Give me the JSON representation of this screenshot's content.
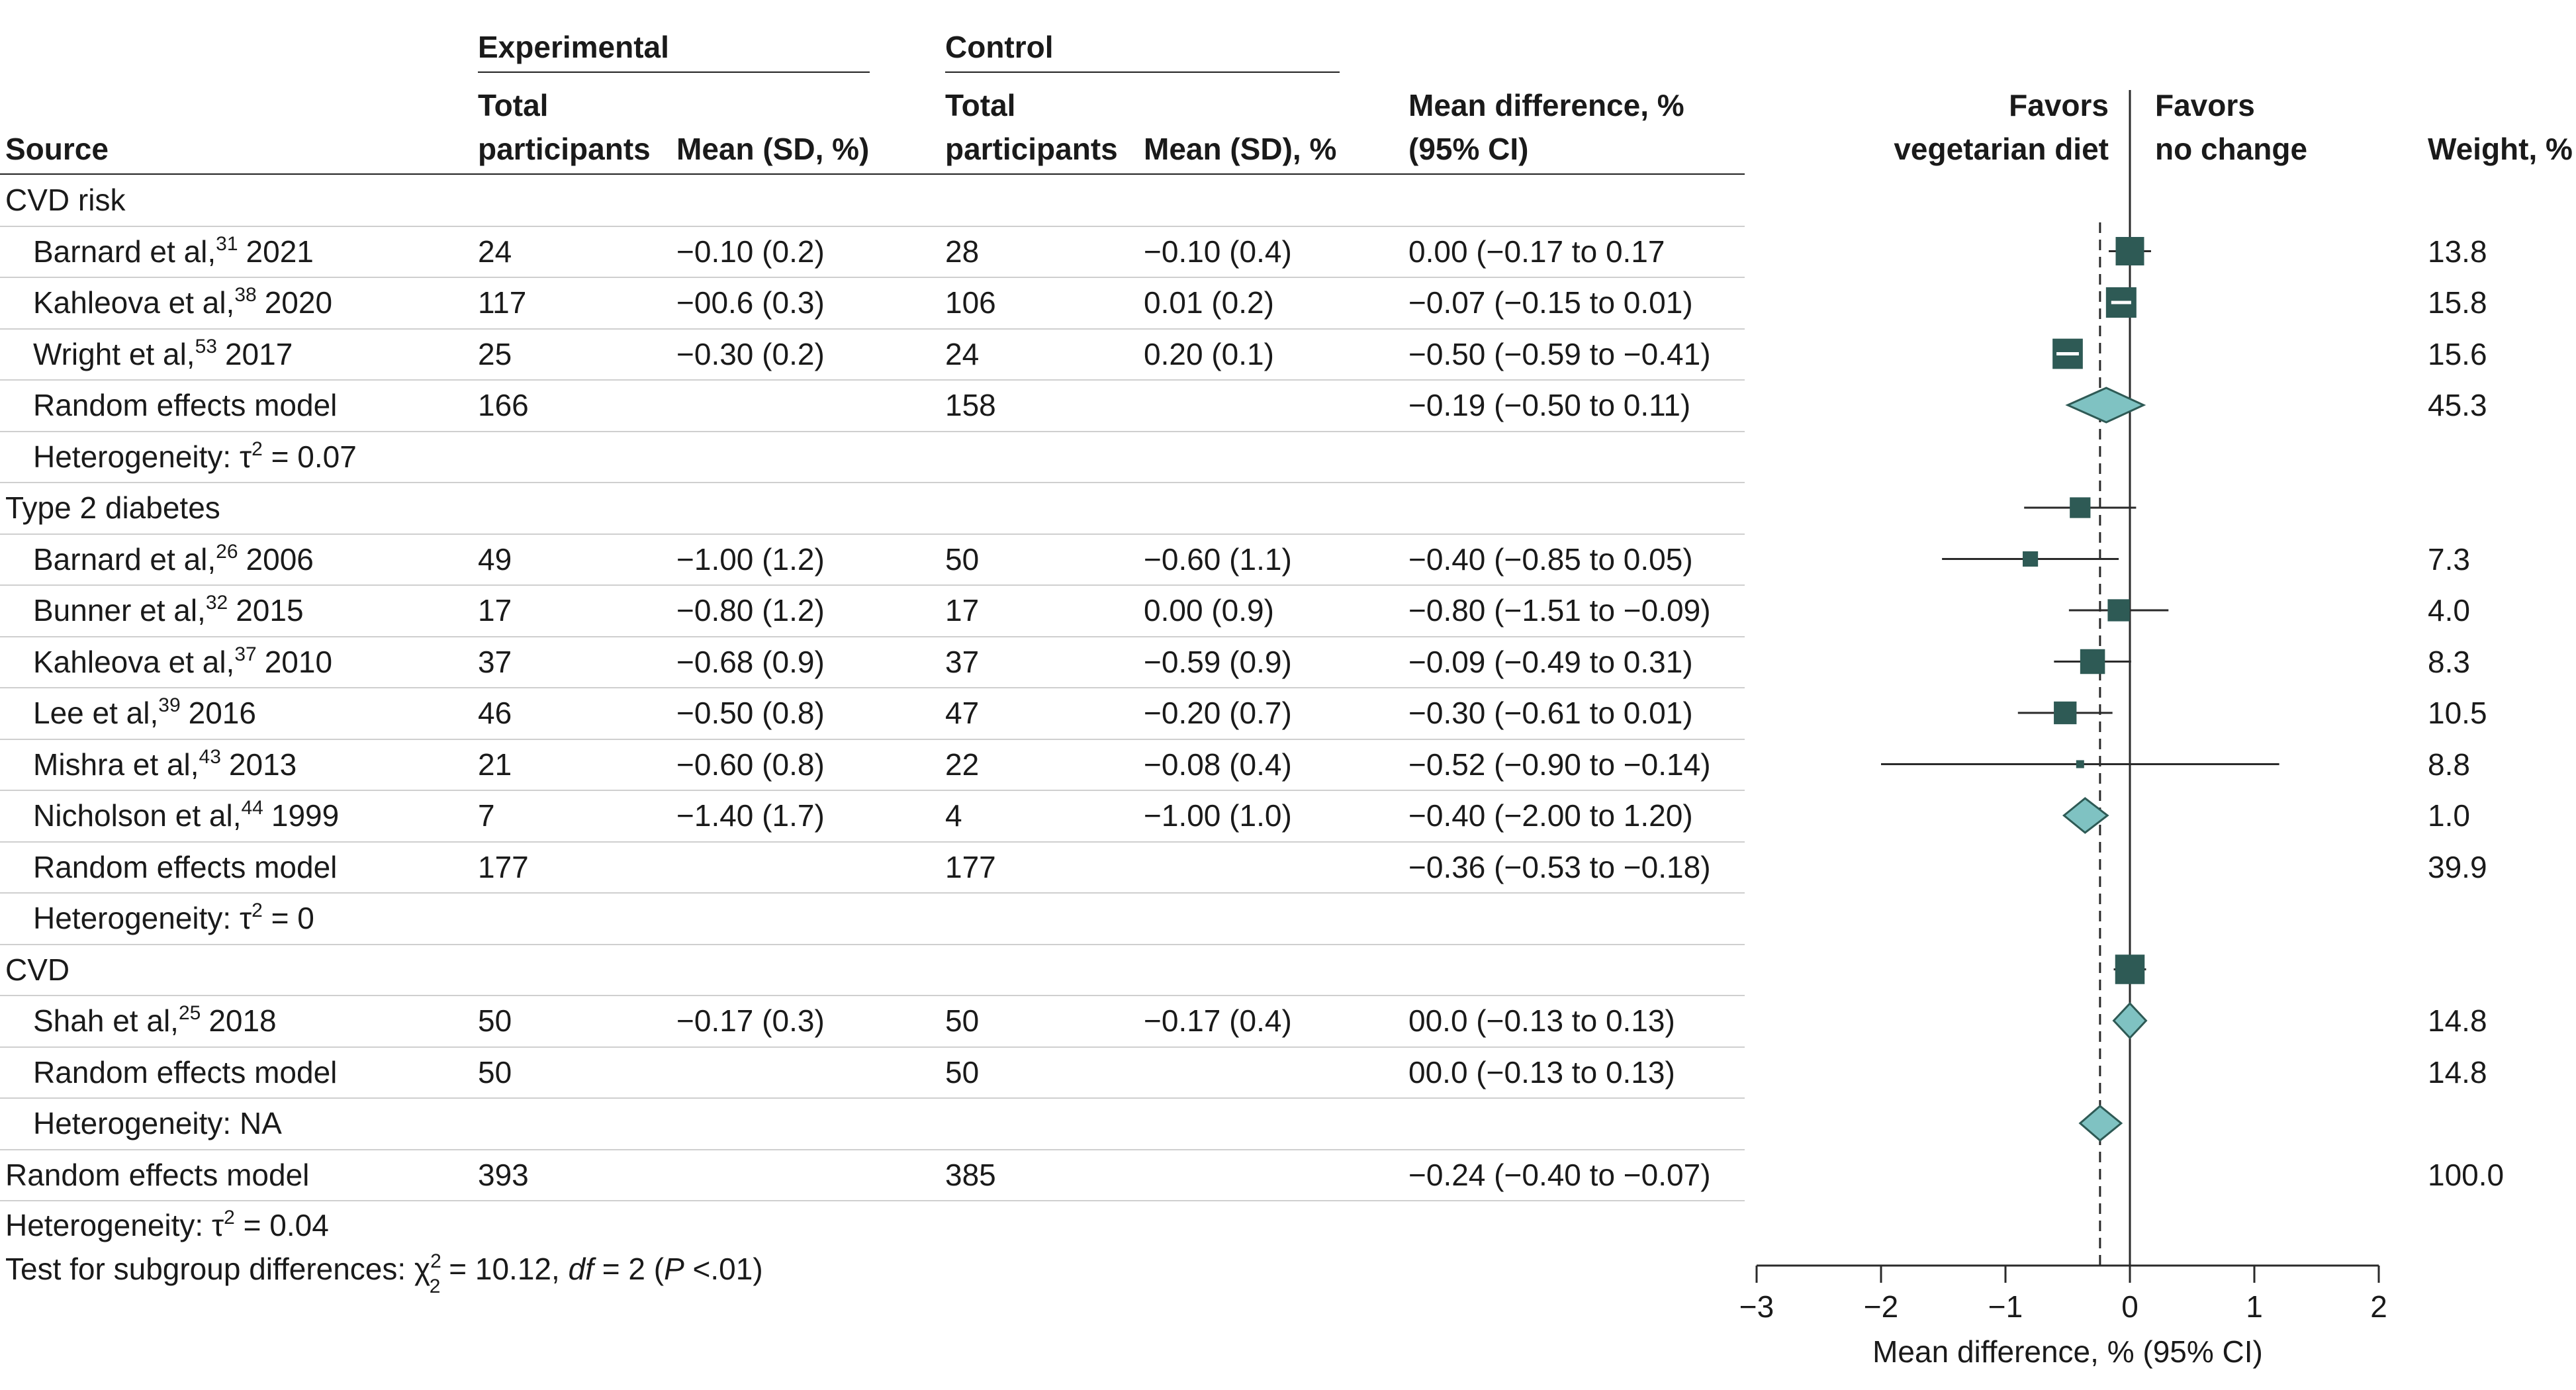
{
  "headers": {
    "experimental": "Experimental",
    "control": "Control",
    "source": "Source",
    "total_line1": "Total",
    "total_line2": "participants",
    "exp_mean": "Mean (SD, %)",
    "ctl_mean": "Mean (SD), %",
    "md_line1": "Mean difference, %",
    "md_line2": "(95% CI)",
    "favors_left_1": "Favors",
    "favors_left_2": "vegetarian diet",
    "favors_right_1": "Favors",
    "favors_right_2": "no change",
    "weight": "Weight, %"
  },
  "rows": [
    {
      "kind": "group",
      "label": "CVD risk"
    },
    {
      "kind": "study",
      "author": "Barnard et al,",
      "ref": "31",
      "year": "2021",
      "exp_n": "24",
      "exp_mean": "−0.10 (0.2)",
      "ctl_n": "28",
      "ctl_mean": "−0.10 (0.4)",
      "md": "0.00 (−0.17 to 0.17",
      "weight": "13.8"
    },
    {
      "kind": "study",
      "author": "Kahleova et al,",
      "ref": "38",
      "year": "2020",
      "exp_n": "117",
      "exp_mean": "−00.6 (0.3)",
      "ctl_n": "106",
      "ctl_mean": "0.01 (0.2)",
      "md": "−0.07 (−0.15 to 0.01)",
      "weight": "15.8"
    },
    {
      "kind": "study",
      "author": "Wright et al,",
      "ref": "53",
      "year": "2017",
      "exp_n": "25",
      "exp_mean": "−0.30 (0.2)",
      "ctl_n": "24",
      "ctl_mean": "0.20 (0.1)",
      "md": "−0.50 (−0.59 to −0.41)",
      "weight": "15.6"
    },
    {
      "kind": "model",
      "label": "Random effects model",
      "exp_n": "166",
      "ctl_n": "158",
      "md": "−0.19 (−0.50 to 0.11)",
      "weight": "45.3"
    },
    {
      "kind": "het",
      "label": "Heterogeneity: τ",
      "sup": "2",
      "rest": " = 0.07"
    },
    {
      "kind": "group",
      "label": "Type 2 diabetes"
    },
    {
      "kind": "study",
      "author": "Barnard et al,",
      "ref": "26",
      "year": "2006",
      "exp_n": "49",
      "exp_mean": "−1.00 (1.2)",
      "ctl_n": "50",
      "ctl_mean": "−0.60 (1.1)",
      "md": "−0.40 (−0.85 to 0.05)",
      "weight": "7.3"
    },
    {
      "kind": "study",
      "author": "Bunner et al,",
      "ref": "32",
      "year": "2015",
      "exp_n": "17",
      "exp_mean": "−0.80 (1.2)",
      "ctl_n": "17",
      "ctl_mean": "0.00 (0.9)",
      "md": "−0.80 (−1.51 to −0.09)",
      "weight": "4.0"
    },
    {
      "kind": "study",
      "author": "Kahleova et al,",
      "ref": "37",
      "year": "2010",
      "exp_n": "37",
      "exp_mean": "−0.68 (0.9)",
      "ctl_n": "37",
      "ctl_mean": "−0.59 (0.9)",
      "md": "−0.09 (−0.49 to 0.31)",
      "weight": "8.3"
    },
    {
      "kind": "study",
      "author": "Lee et al,",
      "ref": "39",
      "year": "2016",
      "exp_n": "46",
      "exp_mean": "−0.50 (0.8)",
      "ctl_n": "47",
      "ctl_mean": "−0.20 (0.7)",
      "md": "−0.30 (−0.61 to 0.01)",
      "weight": "10.5"
    },
    {
      "kind": "study",
      "author": "Mishra et al,",
      "ref": "43",
      "year": "2013",
      "exp_n": "21",
      "exp_mean": "−0.60 (0.8)",
      "ctl_n": "22",
      "ctl_mean": "−0.08 (0.4)",
      "md": "−0.52 (−0.90 to −0.14)",
      "weight": "8.8"
    },
    {
      "kind": "study",
      "author": "Nicholson et al,",
      "ref": "44",
      "year": "1999",
      "exp_n": "7",
      "exp_mean": "−1.40 (1.7)",
      "ctl_n": "4",
      "ctl_mean": "−1.00 (1.0)",
      "md": "−0.40 (−2.00 to 1.20)",
      "weight": "1.0"
    },
    {
      "kind": "model",
      "label": "Random effects model",
      "exp_n": "177",
      "ctl_n": "177",
      "md": "−0.36 (−0.53 to −0.18)",
      "weight": "39.9"
    },
    {
      "kind": "het",
      "label": "Heterogeneity: τ",
      "sup": "2",
      "rest": " = 0"
    },
    {
      "kind": "group",
      "label": "CVD"
    },
    {
      "kind": "study",
      "author": "Shah et al,",
      "ref": "25",
      "year": "2018",
      "exp_n": "50",
      "exp_mean": "−0.17 (0.3)",
      "ctl_n": "50",
      "ctl_mean": "−0.17 (0.4)",
      "md": "00.0 (−0.13 to 0.13)",
      "weight": "14.8"
    },
    {
      "kind": "model",
      "label": "Random effects model",
      "exp_n": "50",
      "ctl_n": "50",
      "md": "00.0 (−0.13 to 0.13)",
      "weight": "14.8"
    },
    {
      "kind": "het",
      "label": "Heterogeneity: NA",
      "sup": "",
      "rest": ""
    },
    {
      "kind": "overall",
      "label": "Random effects model",
      "exp_n": "393",
      "ctl_n": "385",
      "md": "−0.24 (−0.40 to −0.07)",
      "weight": "100.0"
    }
  ],
  "footer": {
    "het_label": "Heterogeneity: τ",
    "het_sup": "2",
    "het_rest": " = 0.04",
    "test_label": "Test for subgroup differences: χ",
    "test_sup": "2",
    "test_sub": "2",
    "test_mid": " = 10.12, ",
    "test_df": "df",
    "test_df_val": " = 2 (",
    "test_p": "P",
    "test_p_val": " <.01)"
  },
  "chart_data": {
    "type": "forest",
    "xlabel": "Mean difference, % (95% CI)",
    "xlim": [
      -3,
      2
    ],
    "ticks": [
      -3,
      -2,
      -1,
      0,
      1,
      2
    ],
    "tick_labels": [
      "−3",
      "−2",
      "−1",
      "0",
      "1",
      "2"
    ],
    "overall_line": -0.24,
    "null_line": 0,
    "colors": {
      "square": "#2e5a55",
      "diamond": "#7fc2c2",
      "diamond_stroke": "#2e5a55",
      "line": "#2a2a2a"
    },
    "studies": [
      {
        "row": 1,
        "est": 0.0,
        "lo": -0.17,
        "hi": 0.17,
        "weight": 13.8,
        "bar_inside": false
      },
      {
        "row": 2,
        "est": -0.07,
        "lo": -0.15,
        "hi": 0.01,
        "weight": 15.8,
        "bar_inside": true
      },
      {
        "row": 3,
        "est": -0.5,
        "lo": -0.59,
        "hi": -0.41,
        "weight": 15.6,
        "bar_inside": true
      },
      {
        "row": 6,
        "est": -0.4,
        "lo": -0.85,
        "hi": 0.05,
        "weight": 7.3,
        "bar_inside": false
      },
      {
        "row": 7,
        "est": -0.8,
        "lo": -1.51,
        "hi": -0.09,
        "weight": 4.0,
        "bar_inside": false
      },
      {
        "row": 8,
        "est": -0.09,
        "lo": -0.49,
        "hi": 0.31,
        "weight": 8.3,
        "bar_inside": false
      },
      {
        "row": 9,
        "est": -0.3,
        "lo": -0.61,
        "hi": 0.01,
        "weight": 10.5,
        "bar_inside": false
      },
      {
        "row": 10,
        "est": -0.52,
        "lo": -0.9,
        "hi": -0.14,
        "weight": 8.8,
        "bar_inside": false
      },
      {
        "row": 11,
        "est": -0.4,
        "lo": -2.0,
        "hi": 1.2,
        "weight": 1.0,
        "bar_inside": false
      },
      {
        "row": 15,
        "est": 0.0,
        "lo": -0.13,
        "hi": 0.13,
        "weight": 14.8,
        "bar_inside": false
      }
    ],
    "diamonds": [
      {
        "row": 4,
        "est": -0.19,
        "lo": -0.5,
        "hi": 0.11
      },
      {
        "row": 12,
        "est": -0.36,
        "lo": -0.53,
        "hi": -0.18
      },
      {
        "row": 16,
        "est": 0.0,
        "lo": -0.13,
        "hi": 0.13
      },
      {
        "row": 18,
        "est": -0.24,
        "lo": -0.4,
        "hi": -0.07
      }
    ]
  }
}
